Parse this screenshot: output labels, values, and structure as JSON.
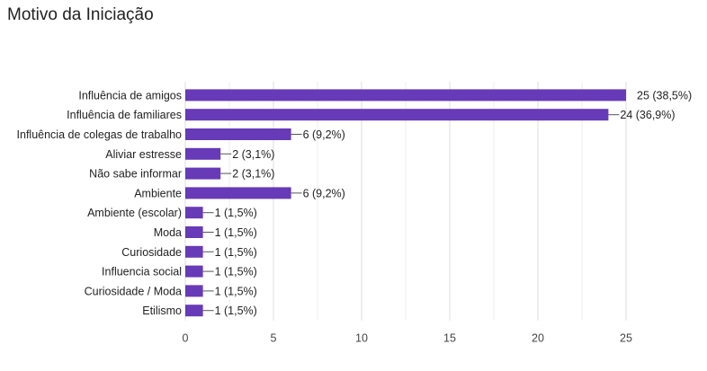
{
  "title": "Motivo da Iniciação",
  "chart_data": {
    "type": "bar",
    "orientation": "horizontal",
    "title": "Motivo da Iniciação",
    "xlabel": "",
    "ylabel": "",
    "xlim": [
      0,
      25
    ],
    "x_ticks": [
      0,
      5,
      10,
      15,
      20,
      25
    ],
    "grid": true,
    "bar_color": "#673ab7",
    "categories": [
      "Influência de amigos",
      "Influência de familiares",
      "Influência de colegas de trabalho",
      "Aliviar estresse",
      "Não sabe informar",
      "Ambiente",
      "Ambiente (escolar)",
      "Moda",
      "Curiosidade",
      "Influencia social",
      "Curiosidade / Moda",
      "Etilismo"
    ],
    "values": [
      25,
      24,
      6,
      2,
      2,
      6,
      1,
      1,
      1,
      1,
      1,
      1
    ],
    "data_labels": [
      "25 (38,5%)",
      "24 (36,9%)",
      "6 (9,2%)",
      "2 (3,1%)",
      "2 (3,1%)",
      "6 (9,2%)",
      "1 (1,5%)",
      "1 (1,5%)",
      "1 (1,5%)",
      "1 (1,5%)",
      "1 (1,5%)",
      "1 (1,5%)"
    ]
  }
}
